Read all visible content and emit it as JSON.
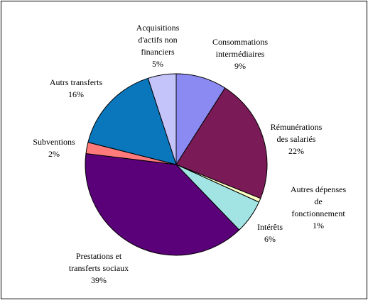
{
  "chart_data": {
    "type": "pie",
    "title": "",
    "slices": [
      {
        "label_lines": [
          "Consommations",
          "intermédiaires"
        ],
        "percent_label": "9%",
        "value": 9,
        "color": "#8a8af2"
      },
      {
        "label_lines": [
          "Rémunérations",
          "des salariés"
        ],
        "percent_label": "22%",
        "value": 22,
        "color": "#7a1b57"
      },
      {
        "label_lines": [
          "Autres dépenses",
          "de",
          "fonctionnement"
        ],
        "percent_label": "1%",
        "value": 0.7,
        "color": "#ffffc4"
      },
      {
        "label_lines": [
          "Intérêts"
        ],
        "percent_label": "6%",
        "value": 6,
        "color": "#a2e3e3"
      },
      {
        "label_lines": [
          "Prestations et",
          "transferts sociaux"
        ],
        "percent_label": "39%",
        "value": 39,
        "color": "#5a0079"
      },
      {
        "label_lines": [
          "Subventions"
        ],
        "percent_label": "2%",
        "value": 2,
        "color": "#ff7b7b"
      },
      {
        "label_lines": [
          "Autrs transferts"
        ],
        "percent_label": "16%",
        "value": 16,
        "color": "#0a77bd"
      },
      {
        "label_lines": [
          "Acquisitions",
          "d'actifs non",
          "financiers"
        ],
        "percent_label": "5%",
        "value": 5,
        "color": "#c4c4fb"
      }
    ]
  }
}
